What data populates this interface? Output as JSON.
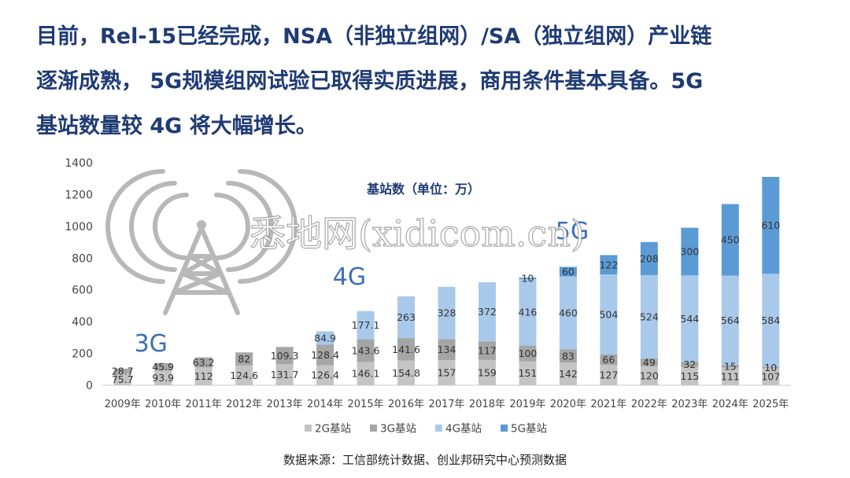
{
  "headline": {
    "line1": "目前，Rel-15已经完成，NSA（非独立组网）/SA（独立组网）产业链",
    "line2": "逐渐成熟， 5G规模组网试验已取得实质进展，商用条件基本具备。5G",
    "line3": "基站数量较 4G 将大幅增长。"
  },
  "watermark": "悉地网(xidicom.cn)",
  "source_note": "数据来源：工信部统计数据、创业邦研究中心预测数据",
  "chart_data": {
    "type": "bar",
    "stacked": true,
    "title": "基站数（单位：万）",
    "xlabel": "",
    "ylabel": "",
    "ylim": [
      0,
      1400
    ],
    "yticks": [
      0,
      200,
      400,
      600,
      800,
      1000,
      1200,
      1400
    ],
    "grid": false,
    "legend_position": "bottom",
    "categories": [
      "2009年",
      "2010年",
      "2011年",
      "2012年",
      "2013年",
      "2014年",
      "2015年",
      "2016年",
      "2017年",
      "2018年",
      "2019年",
      "2020年",
      "2021年",
      "2022年",
      "2023年",
      "2024年",
      "2025年"
    ],
    "series": [
      {
        "name": "2G基站",
        "color": "#c4c4c4",
        "values": [
          75.7,
          93.9,
          112,
          124.6,
          131.7,
          126.4,
          146.1,
          154.8,
          157,
          159,
          151,
          142,
          127,
          120,
          115,
          111,
          107
        ]
      },
      {
        "name": "3G基站",
        "color": "#a5a5a5",
        "values": [
          28.7,
          45.9,
          63.2,
          82,
          109.3,
          128.4,
          143.6,
          141.6,
          134,
          117,
          100,
          83,
          66,
          49,
          32,
          15,
          10
        ]
      },
      {
        "name": "4G基站",
        "color": "#a9c9eb",
        "values": [
          0,
          0,
          0,
          0,
          0,
          84.9,
          177.1,
          263,
          328,
          372,
          416,
          460,
          504,
          524,
          544,
          564,
          584
        ]
      },
      {
        "name": "5G基站",
        "color": "#5b9bd5",
        "values": [
          0,
          0,
          0,
          0,
          0,
          0,
          0,
          0,
          0,
          0,
          10,
          60,
          122,
          208,
          300,
          450,
          610
        ]
      }
    ],
    "data_labels": [
      [
        "75.7",
        "93.9",
        "112",
        "124.6",
        "131.7",
        "126.4",
        "146.1",
        "154.8",
        "157",
        "159",
        "151",
        "142",
        "127",
        "120",
        "115",
        "111",
        "107"
      ],
      [
        "28.7",
        "45.9",
        "63.2",
        "82",
        "109.3",
        "128.4",
        "143.6",
        "141.6",
        "134",
        "117",
        "100",
        "83",
        "66",
        "49",
        "32",
        "15",
        "10"
      ],
      [
        "",
        "",
        "",
        "",
        "",
        "84.9",
        "177.1",
        "263",
        "328",
        "372",
        "416",
        "460",
        "504",
        "524",
        "544",
        "564",
        "584"
      ],
      [
        "",
        "",
        "",
        "",
        "",
        "",
        "",
        "",
        "",
        "",
        "10",
        "60",
        "122",
        "208",
        "300",
        "450",
        "610"
      ]
    ],
    "annotations": [
      {
        "text": "3G",
        "color": "#3b6fb6",
        "near": "2010年"
      },
      {
        "text": "4G",
        "color": "#3b6fb6",
        "near": "2015年"
      },
      {
        "text": "5G",
        "color": "#3b6fb6",
        "near": "2020年"
      }
    ]
  }
}
